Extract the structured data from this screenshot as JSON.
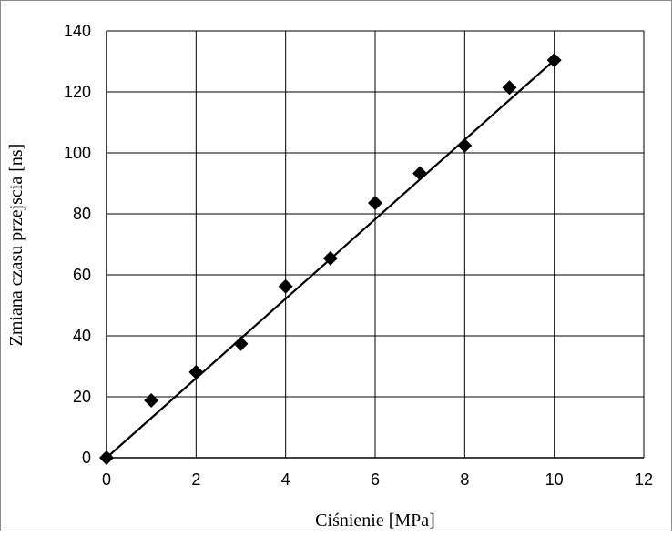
{
  "chart_data": {
    "type": "scatter",
    "title": "",
    "xlabel": "Ciśnienie [MPa]",
    "ylabel": "Zmiana czasu przejscia [ns]",
    "xlim": [
      0,
      12
    ],
    "ylim": [
      0,
      140
    ],
    "xticks": [
      0,
      2,
      4,
      6,
      8,
      10,
      12
    ],
    "yticks": [
      0,
      20,
      40,
      60,
      80,
      100,
      120,
      140
    ],
    "grid": true,
    "legend": "none",
    "marker": "diamond",
    "colors": {
      "marker": "#000000",
      "line": "#000000",
      "grid": "#000000",
      "frame": "#8c8c8c"
    },
    "series": [
      {
        "x": [
          0,
          1,
          2,
          3,
          4,
          5,
          6,
          7,
          8,
          9,
          10
        ],
        "y": [
          0,
          18.8,
          28.1,
          37.4,
          56.2,
          65.4,
          83.6,
          93.3,
          102.4,
          121.4,
          130.4
        ]
      }
    ],
    "trendline": {
      "x": [
        0,
        10
      ],
      "y": [
        0,
        130.4
      ]
    }
  }
}
